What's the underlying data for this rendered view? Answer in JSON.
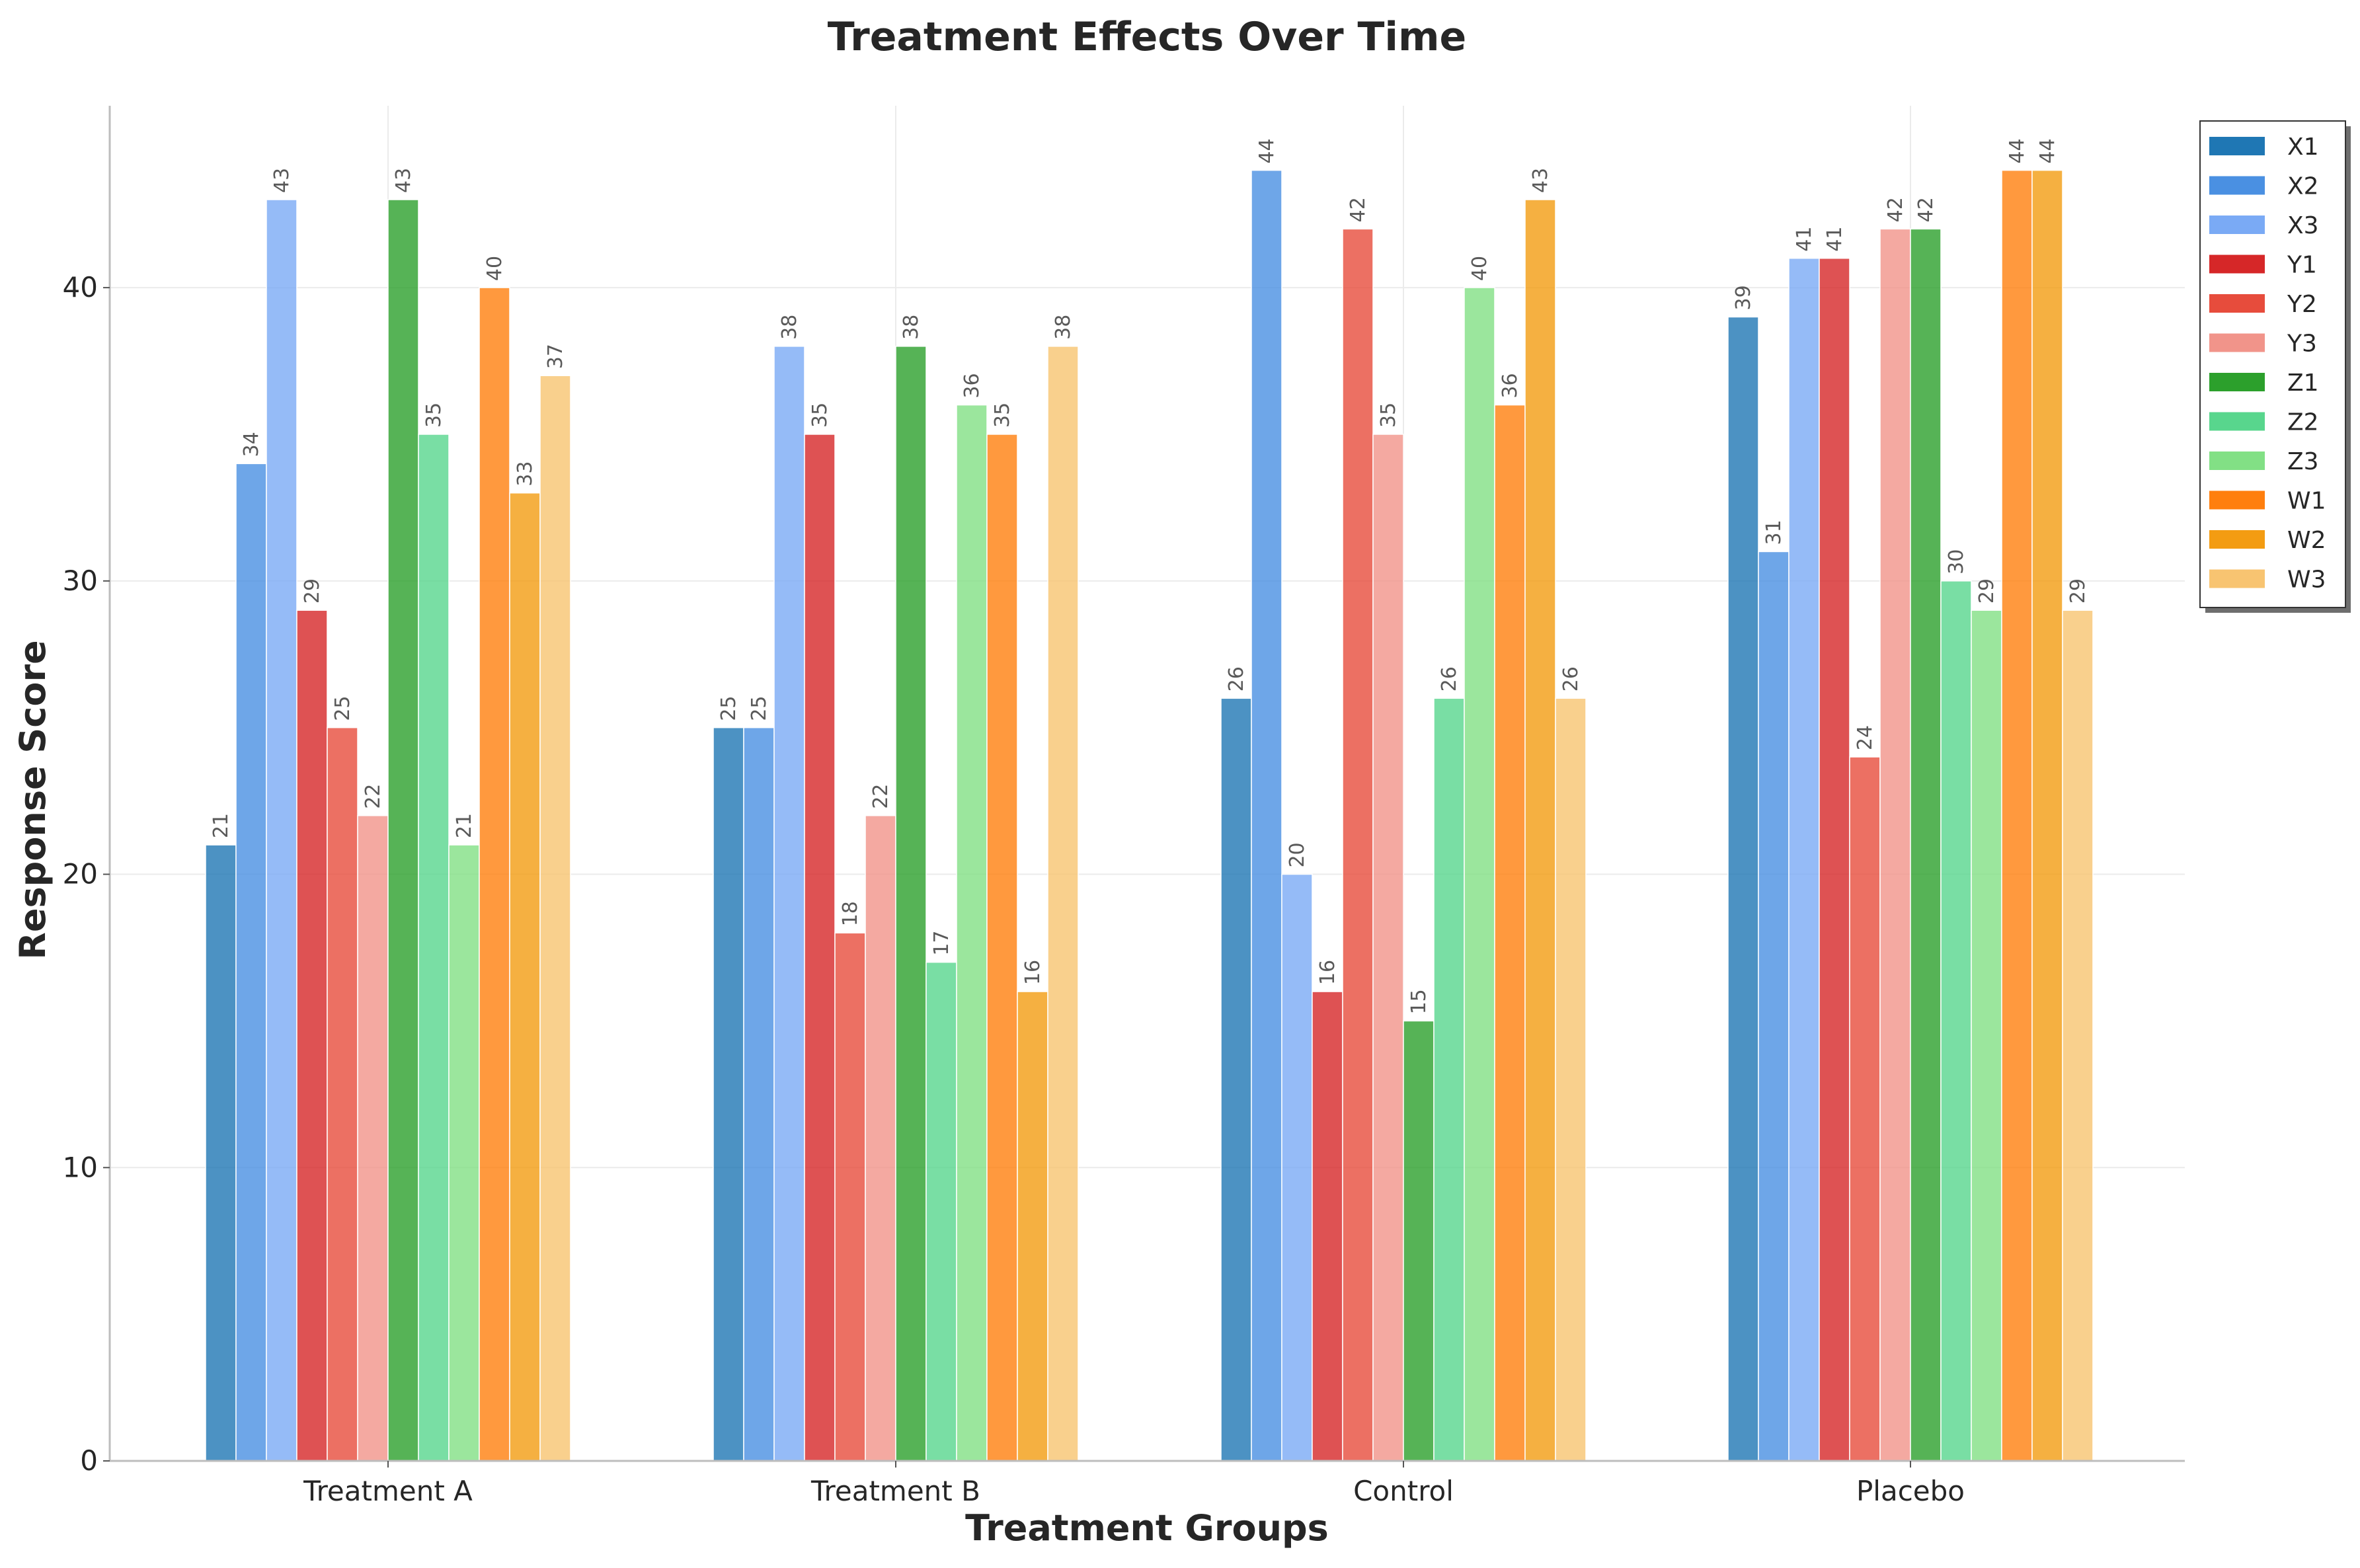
{
  "chart_data": {
    "type": "bar",
    "title": "Treatment Effects Over Time",
    "xlabel": "Treatment Groups",
    "ylabel": "Response Score",
    "categories": [
      "Treatment A",
      "Treatment B",
      "Control",
      "Placebo"
    ],
    "ylim": [
      0,
      46.2
    ],
    "yticks": [
      0,
      10,
      20,
      30,
      40
    ],
    "grid": true,
    "legend_position": "top-right",
    "series": [
      {
        "name": "X1",
        "color": "#1f77b4",
        "values": [
          21,
          25,
          26,
          39
        ]
      },
      {
        "name": "X2",
        "color": "#4a90e2",
        "values": [
          34,
          25,
          44,
          31
        ]
      },
      {
        "name": "X3",
        "color": "#7aaaf5",
        "values": [
          43,
          38,
          20,
          41
        ]
      },
      {
        "name": "Y1",
        "color": "#d62728",
        "values": [
          29,
          35,
          16,
          41
        ]
      },
      {
        "name": "Y2",
        "color": "#e74c3c",
        "values": [
          25,
          18,
          42,
          24
        ]
      },
      {
        "name": "Y3",
        "color": "#f1948a",
        "values": [
          22,
          22,
          35,
          42
        ]
      },
      {
        "name": "Z1",
        "color": "#2ca02c",
        "values": [
          43,
          38,
          15,
          42
        ]
      },
      {
        "name": "Z2",
        "color": "#58d68d",
        "values": [
          35,
          17,
          26,
          30
        ]
      },
      {
        "name": "Z3",
        "color": "#82e085",
        "values": [
          21,
          36,
          40,
          29
        ]
      },
      {
        "name": "W1",
        "color": "#ff7f0e",
        "values": [
          40,
          35,
          36,
          44
        ]
      },
      {
        "name": "W2",
        "color": "#f39c12",
        "values": [
          33,
          16,
          43,
          44
        ]
      },
      {
        "name": "W3",
        "color": "#f8c471",
        "values": [
          37,
          38,
          26,
          29
        ]
      }
    ]
  }
}
